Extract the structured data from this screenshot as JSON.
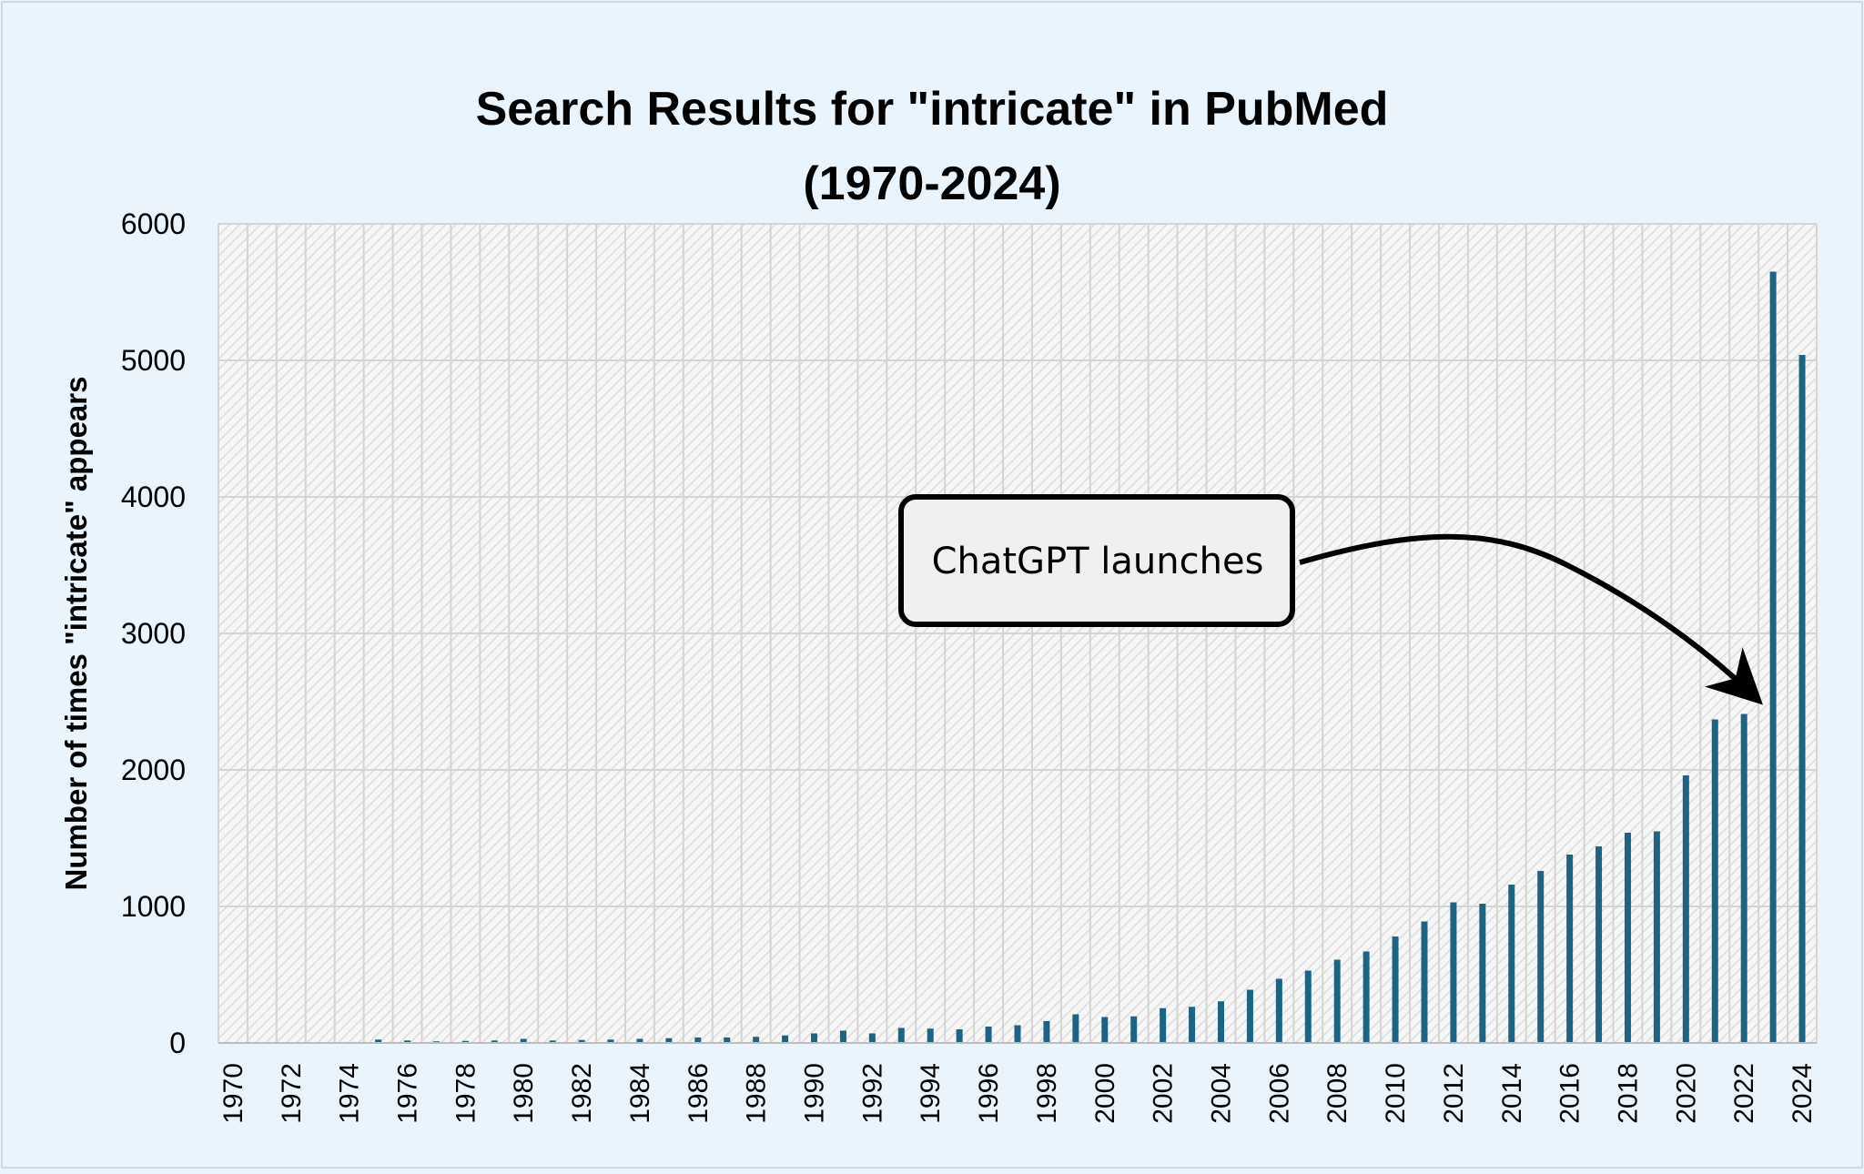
{
  "chart_data": {
    "type": "bar",
    "title": "Search Results for \"intricate\" in PubMed",
    "subtitle": "(1970-2024)",
    "ylabel": "Number of times \"intricate\" appears",
    "xlabel": "",
    "ylim": [
      0,
      6000
    ],
    "yticks": [
      0,
      1000,
      2000,
      3000,
      4000,
      5000,
      6000
    ],
    "categories": [
      1970,
      1971,
      1972,
      1973,
      1974,
      1975,
      1976,
      1977,
      1978,
      1979,
      1980,
      1981,
      1982,
      1983,
      1984,
      1985,
      1986,
      1987,
      1988,
      1989,
      1990,
      1991,
      1992,
      1993,
      1994,
      1995,
      1996,
      1997,
      1998,
      1999,
      2000,
      2001,
      2002,
      2003,
      2004,
      2005,
      2006,
      2007,
      2008,
      2009,
      2010,
      2011,
      2012,
      2013,
      2014,
      2015,
      2016,
      2017,
      2018,
      2019,
      2020,
      2021,
      2022,
      2023,
      2024
    ],
    "x_tick_labels": [
      "1970",
      "1972",
      "1974",
      "1976",
      "1978",
      "1980",
      "1982",
      "1984",
      "1986",
      "1988",
      "1990",
      "1992",
      "1994",
      "1996",
      "1998",
      "2000",
      "2002",
      "2004",
      "2006",
      "2008",
      "2010",
      "2012",
      "2014",
      "2016",
      "2018",
      "2020",
      "2022",
      "2024"
    ],
    "values": [
      0,
      0,
      0,
      0,
      0,
      25,
      18,
      12,
      15,
      18,
      30,
      18,
      22,
      25,
      30,
      35,
      40,
      40,
      45,
      55,
      70,
      90,
      70,
      110,
      105,
      100,
      120,
      130,
      160,
      210,
      190,
      195,
      255,
      265,
      305,
      390,
      470,
      530,
      610,
      670,
      780,
      890,
      1030,
      1020,
      1160,
      1260,
      1380,
      1440,
      1540,
      1550,
      1960,
      2370,
      2410,
      5650,
      5040
    ],
    "bar_color": "#1f6383",
    "grid": true,
    "legend": "none",
    "annotation": {
      "text": "ChatGPT launches",
      "points_to": 2022
    }
  }
}
